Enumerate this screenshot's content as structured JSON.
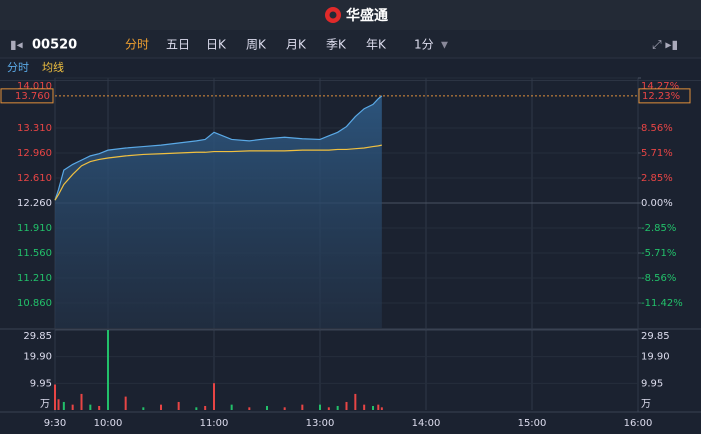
{
  "header": {
    "title": "华盛通"
  },
  "toolbar": {
    "symbol": "00520",
    "tabs": [
      "分时",
      "五日",
      "日K",
      "周K",
      "月K",
      "季K",
      "年K",
      "1分"
    ]
  },
  "chart_data": {
    "type": "line",
    "x": [
      0,
      2,
      5,
      10,
      15,
      20,
      25,
      30,
      40,
      50,
      60,
      70,
      80,
      85,
      90,
      100,
      110,
      120,
      130,
      140,
      150,
      155,
      160,
      165,
      170,
      175,
      180,
      183,
      185
    ],
    "xlim": [
      0,
      330
    ],
    "xticks": [
      {
        "value": 0,
        "label": "9:30"
      },
      {
        "value": 30,
        "label": "10:00"
      },
      {
        "value": 90,
        "label": "11:00"
      },
      {
        "value": 150,
        "label": "13:00"
      },
      {
        "value": 210,
        "label": "14:00"
      },
      {
        "value": 270,
        "label": "15:00"
      },
      {
        "value": 330,
        "label": "16:00"
      }
    ],
    "series": [
      {
        "name": "分时",
        "color": "#5aa9e6",
        "values": [
          12.3,
          12.45,
          12.72,
          12.8,
          12.86,
          12.92,
          12.95,
          13.0,
          13.03,
          13.05,
          13.07,
          13.1,
          13.13,
          13.15,
          13.25,
          13.15,
          13.13,
          13.16,
          13.18,
          13.16,
          13.15,
          13.2,
          13.25,
          13.33,
          13.47,
          13.58,
          13.64,
          13.72,
          13.76
        ]
      },
      {
        "name": "均线",
        "color": "#f0c040",
        "values": [
          12.3,
          12.38,
          12.52,
          12.66,
          12.78,
          12.84,
          12.87,
          12.89,
          12.92,
          12.94,
          12.95,
          12.96,
          12.97,
          12.97,
          12.98,
          12.98,
          12.99,
          12.99,
          12.99,
          13.0,
          13.0,
          13.0,
          13.01,
          13.01,
          13.02,
          13.03,
          13.05,
          13.06,
          13.07
        ]
      }
    ],
    "ylim": [
      10.51,
      14.01
    ],
    "yticks": [
      {
        "value": 14.01,
        "label": "14.010"
      },
      {
        "value": 13.31,
        "label": "13.310"
      },
      {
        "value": 12.96,
        "label": "12.960"
      },
      {
        "value": 12.61,
        "label": "12.610"
      },
      {
        "value": 12.26,
        "label": "12.260"
      },
      {
        "value": 11.91,
        "label": "11.910"
      },
      {
        "value": 11.56,
        "label": "11.560"
      },
      {
        "value": 11.21,
        "label": "11.210"
      },
      {
        "value": 10.86,
        "label": "10.860"
      }
    ],
    "y2lim": [
      -14.27,
      14.27
    ],
    "y2ticks": [
      {
        "value": 14.27,
        "label": "14.27%"
      },
      {
        "value": 8.56,
        "label": "8.56%"
      },
      {
        "value": 5.71,
        "label": "5.71%"
      },
      {
        "value": 2.85,
        "label": "2.85%"
      },
      {
        "value": 0,
        "label": "0.00%"
      },
      {
        "value": -2.85,
        "label": "-2.85%"
      },
      {
        "value": -5.71,
        "label": "-5.71%"
      },
      {
        "value": -8.56,
        "label": "-8.56%"
      },
      {
        "value": -11.42,
        "label": "-11.42%"
      }
    ],
    "current_price": {
      "value": 13.76,
      "label": "13.760"
    },
    "current_change": {
      "value": 12.23,
      "label": "12.23%"
    },
    "volume": {
      "unit": "万",
      "values": [
        9.5,
        4,
        3,
        2,
        6,
        2,
        1.5,
        29.85,
        5,
        1,
        2,
        3,
        1,
        1.5,
        10,
        2,
        1,
        1.5,
        1,
        2,
        2,
        1,
        1.5,
        3,
        6,
        2,
        1.5,
        2,
        1
      ],
      "colors": [
        "#e84545",
        "#e84545",
        "#22c06a",
        "#e84545",
        "#e84545",
        "#22c06a",
        "#e84545",
        "#22c06a",
        "#e84545",
        "#22c06a",
        "#e84545",
        "#e84545",
        "#22c06a",
        "#e84545",
        "#e84545",
        "#22c06a",
        "#e84545",
        "#22c06a",
        "#e84545",
        "#e84545",
        "#22c06a",
        "#e84545",
        "#22c06a",
        "#e84545",
        "#e84545",
        "#e84545",
        "#22c06a",
        "#e84545",
        "#e84545"
      ],
      "ylim": [
        0,
        29.85
      ],
      "yticks": [
        29.85,
        {
          "value": 19.9,
          "label": "19.90"
        },
        9.95
      ]
    }
  }
}
